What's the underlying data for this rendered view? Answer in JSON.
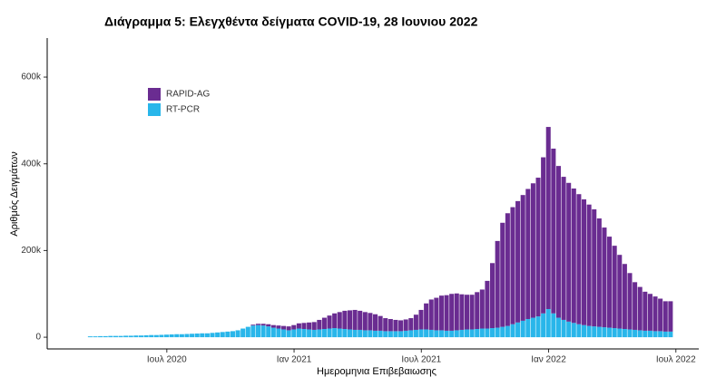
{
  "chart_data": {
    "type": "stacked-bar",
    "title": "Διάγραμμα 5: Ελεγχθέντα δείγματα COVID-19, 28 Ιουνιου 2022",
    "x_label": "Ημερομηνια Επιβεβαιωσης",
    "y_label": "Αριθμός Δειγμάτων",
    "legend": "top-left",
    "grid": false,
    "xlim": [
      2020.03,
      2022.59
    ],
    "xticks": [
      {
        "value": 2020.5,
        "label": "Ιουλ 2020"
      },
      {
        "value": 2021.0,
        "label": "Ιαν 2021"
      },
      {
        "value": 2021.5,
        "label": "Ιουλ 2021"
      },
      {
        "value": 2022.0,
        "label": "Ιαν 2022"
      },
      {
        "value": 2022.5,
        "label": "Ιουλ 2022"
      }
    ],
    "ylim": [
      -27000,
      690000
    ],
    "yticks": [
      0,
      {
        "value": 200000,
        "label": "200k"
      },
      {
        "value": 400000,
        "label": "400k"
      },
      {
        "value": 600000,
        "label": "600k"
      }
    ],
    "x": [
      2020.2,
      2020.22,
      2020.24,
      2020.26,
      2020.28,
      2020.3,
      2020.32,
      2020.34,
      2020.36,
      2020.38,
      2020.4,
      2020.42,
      2020.44,
      2020.46,
      2020.48,
      2020.5,
      2020.52,
      2020.54,
      2020.56,
      2020.58,
      2020.6,
      2020.62,
      2020.64,
      2020.66,
      2020.68,
      2020.7,
      2020.72,
      2020.74,
      2020.76,
      2020.78,
      2020.8,
      2020.82,
      2020.84,
      2020.86,
      2020.88,
      2020.9,
      2020.92,
      2020.94,
      2020.96,
      2020.98,
      2021.0,
      2021.02,
      2021.04,
      2021.06,
      2021.08,
      2021.1,
      2021.12,
      2021.14,
      2021.16,
      2021.18,
      2021.2,
      2021.22,
      2021.24,
      2021.26,
      2021.28,
      2021.3,
      2021.32,
      2021.34,
      2021.36,
      2021.38,
      2021.4,
      2021.42,
      2021.44,
      2021.46,
      2021.48,
      2021.5,
      2021.52,
      2021.54,
      2021.56,
      2021.58,
      2021.6,
      2021.62,
      2021.64,
      2021.66,
      2021.68,
      2021.7,
      2021.72,
      2021.74,
      2021.76,
      2021.78,
      2021.8,
      2021.82,
      2021.84,
      2021.86,
      2021.88,
      2021.9,
      2021.92,
      2021.94,
      2021.96,
      2021.98,
      2022.0,
      2022.02,
      2022.04,
      2022.06,
      2022.08,
      2022.1,
      2022.12,
      2022.14,
      2022.16,
      2022.18,
      2022.2,
      2022.22,
      2022.24,
      2022.26,
      2022.28,
      2022.3,
      2022.32,
      2022.34,
      2022.36,
      2022.38,
      2022.4,
      2022.42,
      2022.44,
      2022.46,
      2022.48
    ],
    "series": [
      {
        "name": "RAPID-AG",
        "color": "#6a2c91",
        "values": [
          0,
          0,
          0,
          0,
          0,
          0,
          0,
          0,
          0,
          0,
          0,
          0,
          0,
          0,
          0,
          0,
          0,
          0,
          0,
          0,
          0,
          0,
          0,
          0,
          0,
          0,
          0,
          0,
          0,
          0,
          0,
          0,
          2000,
          3000,
          4000,
          5000,
          6000,
          7000,
          8000,
          9000,
          10000,
          12000,
          14000,
          16000,
          18000,
          22000,
          26000,
          30000,
          34000,
          38000,
          42000,
          44000,
          46000,
          44000,
          42000,
          40000,
          38000,
          34000,
          30000,
          28000,
          26000,
          25000,
          26000,
          28000,
          35000,
          45000,
          60000,
          70000,
          75000,
          80000,
          82000,
          85000,
          85000,
          82000,
          80000,
          80000,
          85000,
          90000,
          110000,
          150000,
          200000,
          240000,
          260000,
          270000,
          280000,
          290000,
          300000,
          310000,
          320000,
          360000,
          420000,
          380000,
          350000,
          330000,
          320000,
          310000,
          300000,
          290000,
          280000,
          270000,
          250000,
          230000,
          210000,
          190000,
          170000,
          150000,
          130000,
          110000,
          100000,
          90000,
          85000,
          80000,
          75000,
          70000,
          70000
        ]
      },
      {
        "name": "RT-PCR",
        "color": "#29b6ea",
        "values": [
          2000,
          2000,
          2500,
          2500,
          3000,
          3000,
          3000,
          3500,
          3500,
          4000,
          4000,
          4500,
          5000,
          5000,
          5500,
          6000,
          6500,
          7000,
          7000,
          7500,
          8000,
          8500,
          9000,
          9000,
          10000,
          11000,
          12000,
          13000,
          14000,
          16000,
          20000,
          24000,
          27000,
          28000,
          27000,
          25000,
          22000,
          20000,
          18000,
          16000,
          18000,
          20000,
          19000,
          18000,
          17000,
          18000,
          19000,
          20000,
          21000,
          20000,
          19000,
          18000,
          17000,
          17000,
          16000,
          16000,
          15000,
          15000,
          14000,
          14000,
          14000,
          14000,
          15000,
          16000,
          17000,
          18000,
          18000,
          17000,
          16000,
          16000,
          15000,
          15000,
          16000,
          17000,
          18000,
          18000,
          19000,
          20000,
          20000,
          21000,
          22000,
          24000,
          26000,
          30000,
          34000,
          38000,
          42000,
          45000,
          48000,
          55000,
          65000,
          55000,
          45000,
          40000,
          36000,
          33000,
          30000,
          28000,
          26000,
          25000,
          24000,
          23000,
          22000,
          21000,
          20000,
          19000,
          18000,
          17000,
          16000,
          15000,
          15000,
          14000,
          14000,
          13000,
          13000
        ]
      }
    ]
  }
}
